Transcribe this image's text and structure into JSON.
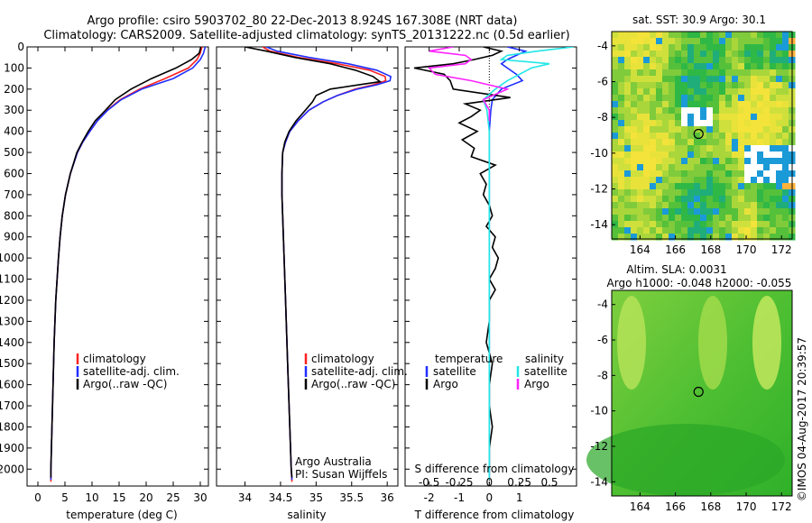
{
  "header": {
    "line1": "Argo profile: csiro 5903702_80 22-Dec-2013 8.924S 167.308E (NRT data)",
    "line2": "Climatology: CARS2009. Satellite-adjusted climatology: synTS_20131222.nc (0.5d earlier)"
  },
  "timestamp": "©IMOS 04-Aug-2017 20:39:57",
  "colors": {
    "climatology": "#ff2020",
    "satellite": "#1f2fff",
    "argo": "#000000",
    "salinity_sat": "#22e6e6",
    "salinity_argo": "#ff22ff"
  },
  "chart_data": [
    {
      "type": "line",
      "id": "temperature",
      "xlabel": "temperature (deg C)",
      "xticks": [
        0,
        5,
        10,
        15,
        20,
        25,
        30
      ],
      "xlim": [
        -2,
        31.5
      ],
      "ylim": [
        0,
        2080
      ],
      "yticks": [
        0,
        100,
        200,
        300,
        400,
        500,
        600,
        700,
        800,
        900,
        1000,
        1100,
        1200,
        1300,
        1400,
        1500,
        1600,
        1700,
        1800,
        1900,
        2000
      ],
      "legend": [
        "climatology",
        "satellite-adj. clim.",
        "Argo(..raw -QC)"
      ],
      "series": [
        {
          "name": "climatology",
          "depth": [
            0,
            30,
            60,
            100,
            150,
            200,
            250,
            300,
            350,
            400,
            450,
            500,
            600,
            700,
            800,
            900,
            1000,
            1200,
            1400,
            1600,
            1800,
            2000,
            2060
          ],
          "values": [
            30.3,
            30,
            29.4,
            27.8,
            23.5,
            18.8,
            15.2,
            12.8,
            11,
            9.6,
            8.3,
            7.3,
            6,
            5.1,
            4.5,
            4.1,
            3.8,
            3.3,
            3,
            2.8,
            2.6,
            2.4,
            2.4
          ]
        },
        {
          "name": "satellite-adj. clim.",
          "depth": [
            0,
            30,
            60,
            100,
            150,
            200,
            250,
            300,
            350,
            400,
            450,
            500,
            600,
            700,
            800,
            900,
            1000,
            1200,
            1400,
            1600,
            1800,
            2000,
            2050
          ],
          "values": [
            30.9,
            30.6,
            30,
            28.6,
            25,
            19.2,
            15.4,
            12.9,
            11,
            9.6,
            8.3,
            7.3,
            6,
            5.1,
            4.5,
            4.1,
            3.8,
            3.3,
            3,
            2.8,
            2.6,
            2.4,
            2.4
          ]
        },
        {
          "name": "Argo(..raw -QC)",
          "depth": [
            0,
            30,
            60,
            100,
            150,
            200,
            250,
            300,
            350,
            400,
            450,
            500,
            600,
            700,
            800,
            900,
            1000,
            1200,
            1400,
            1600,
            1800,
            2000,
            2040
          ],
          "values": [
            30.1,
            29.8,
            28.4,
            25.5,
            21,
            17.2,
            14.3,
            12.5,
            10.6,
            9.3,
            8.2,
            7.2,
            6,
            5.1,
            4.5,
            4.1,
            3.8,
            3.3,
            3,
            2.8,
            2.6,
            2.4,
            2.4
          ]
        }
      ]
    },
    {
      "type": "line",
      "id": "salinity",
      "xlabel": "salinity",
      "xticks": [
        34,
        34.5,
        35,
        35.5,
        36
      ],
      "xlim": [
        33.6,
        36.15
      ],
      "ylim": [
        0,
        2080
      ],
      "legend": [
        "climatology",
        "satellite-adj. clim.",
        "Argo(..raw -QC)"
      ],
      "annotation": [
        "Argo Australia",
        "PI: Susan Wijffels"
      ],
      "series": [
        {
          "name": "climatology",
          "depth": [
            0,
            20,
            50,
            80,
            110,
            140,
            160,
            180,
            200,
            230,
            260,
            300,
            350,
            400,
            450,
            500,
            600,
            700,
            800,
            1000,
            1200,
            1500,
            1800,
            2000,
            2060
          ],
          "values": [
            34.25,
            34.35,
            34.75,
            35.3,
            35.75,
            35.97,
            35.98,
            35.8,
            35.55,
            35.3,
            35.1,
            34.9,
            34.75,
            34.63,
            34.57,
            34.53,
            34.52,
            34.52,
            34.53,
            34.55,
            34.57,
            34.6,
            34.63,
            34.65,
            34.66
          ]
        },
        {
          "name": "satellite-adj. clim.",
          "depth": [
            0,
            20,
            50,
            80,
            110,
            140,
            160,
            180,
            200,
            230,
            260,
            300,
            350,
            400,
            450,
            500,
            600,
            700,
            800,
            1000,
            1200,
            1500,
            1800,
            2000,
            2050
          ],
          "values": [
            34.3,
            34.45,
            34.9,
            35.45,
            35.85,
            36.05,
            36.04,
            35.85,
            35.58,
            35.3,
            35.1,
            34.9,
            34.75,
            34.63,
            34.57,
            34.53,
            34.52,
            34.52,
            34.53,
            34.55,
            34.57,
            34.6,
            34.63,
            34.65,
            34.66
          ]
        },
        {
          "name": "Argo(..raw -QC)",
          "depth": [
            0,
            20,
            50,
            80,
            110,
            140,
            165,
            180,
            200,
            230,
            260,
            300,
            350,
            400,
            450,
            500,
            600,
            700,
            800,
            1000,
            1200,
            1500,
            1800,
            2000,
            2040
          ],
          "values": [
            34.0,
            34.3,
            34.7,
            35.2,
            35.55,
            35.8,
            35.9,
            35.6,
            35.2,
            35.0,
            34.95,
            34.85,
            34.72,
            34.62,
            34.56,
            34.53,
            34.52,
            34.52,
            34.53,
            34.55,
            34.57,
            34.6,
            34.63,
            34.65,
            34.66
          ]
        }
      ]
    },
    {
      "type": "line",
      "id": "difference",
      "xlabel": "T difference from climatology",
      "xlabel2": "S difference from climatology",
      "xticks": [
        -2,
        -1,
        0,
        1
      ],
      "xticks2": [
        -0.5,
        -0.25,
        0,
        0.25,
        0.5
      ],
      "xlim": [
        -2.8,
        2.9
      ],
      "ylim": [
        0,
        2080
      ],
      "legend": {
        "temperature_title": "temperature",
        "salinity_title": "salinity",
        "temperature": [
          "satellite",
          "Argo"
        ],
        "salinity": [
          "satellite",
          "Argo"
        ]
      },
      "series": [
        {
          "name": "satellite",
          "depth": [
            0,
            20,
            40,
            60,
            80,
            100,
            130,
            160,
            200,
            250,
            300,
            400,
            500,
            600,
            800,
            1000,
            1500,
            2000,
            2050
          ],
          "values": [
            0.6,
            1.2,
            0.9,
            0.6,
            0.4,
            0.6,
            0.9,
            1.1,
            0.4,
            0.1,
            0.05,
            0,
            0,
            0,
            0,
            0,
            0,
            0,
            0
          ]
        },
        {
          "name": "Argo",
          "depth": [
            0,
            20,
            40,
            60,
            80,
            100,
            130,
            160,
            200,
            240,
            270,
            300,
            330,
            360,
            400,
            440,
            480,
            520,
            560,
            600,
            650,
            700,
            750,
            800,
            850,
            900,
            950,
            1000,
            1050,
            1100,
            1150,
            1200,
            1300,
            1400,
            1500,
            1600,
            1700,
            1800,
            1900,
            2000,
            2040
          ],
          "values": [
            -0.2,
            0.4,
            0.1,
            -0.5,
            -1.2,
            -2.5,
            -1.5,
            -1.3,
            -1.2,
            0.7,
            -0.8,
            -0.3,
            -0.6,
            -1.0,
            -0.4,
            -0.9,
            -0.5,
            -0.6,
            0.2,
            -0.3,
            -0.1,
            -0.2,
            0,
            0.1,
            -0.1,
            0.2,
            0.1,
            0.3,
            0.2,
            0,
            0.2,
            0,
            0,
            -0.1,
            0.1,
            0,
            0,
            0.1,
            0,
            0,
            0
          ]
        },
        {
          "name": "salinity satellite",
          "depth": [
            0,
            20,
            40,
            60,
            80,
            100,
            130,
            160,
            200,
            250,
            300,
            400,
            500,
            600,
            800,
            1000,
            1500,
            2000,
            2050
          ],
          "values": [
            0.7,
            0.4,
            0.15,
            0.1,
            0.5,
            0.35,
            0.25,
            0.15,
            0.05,
            -0.05,
            -0.02,
            0,
            0,
            0,
            0,
            0,
            0,
            0,
            0
          ]
        },
        {
          "name": "salinity Argo",
          "depth": [
            0,
            20,
            40,
            60,
            80,
            100,
            130,
            160,
            200,
            250,
            300,
            350
          ],
          "values": [
            -0.3,
            -0.5,
            -0.2,
            -0.15,
            -0.2,
            -0.5,
            -0.45,
            -0.15,
            0.15,
            -0.05,
            0,
            0
          ]
        }
      ]
    },
    {
      "type": "heatmap",
      "id": "sst-map",
      "title": "sat. SST: 30.9 Argo: 30.1",
      "xticks": [
        164,
        166,
        168,
        170,
        172
      ],
      "yticks": [
        -4,
        -6,
        -8,
        -10,
        -12,
        -14
      ],
      "xlim": [
        162.4,
        172.6
      ],
      "ylim": [
        -14.8,
        -3.2
      ],
      "marker": {
        "lon": 167.308,
        "lat": -8.924
      }
    },
    {
      "type": "heatmap",
      "id": "sla-map",
      "title": "Altim. SLA: 0.0031",
      "subtitle": "Argo h1000: -0.048 h2000: -0.055",
      "xticks": [
        164,
        166,
        168,
        170,
        172
      ],
      "yticks": [
        -4,
        -6,
        -8,
        -10,
        -12,
        -14
      ],
      "xlim": [
        162.4,
        172.6
      ],
      "ylim": [
        -14.8,
        -3.2
      ],
      "marker": {
        "lon": 167.308,
        "lat": -8.924
      }
    }
  ]
}
